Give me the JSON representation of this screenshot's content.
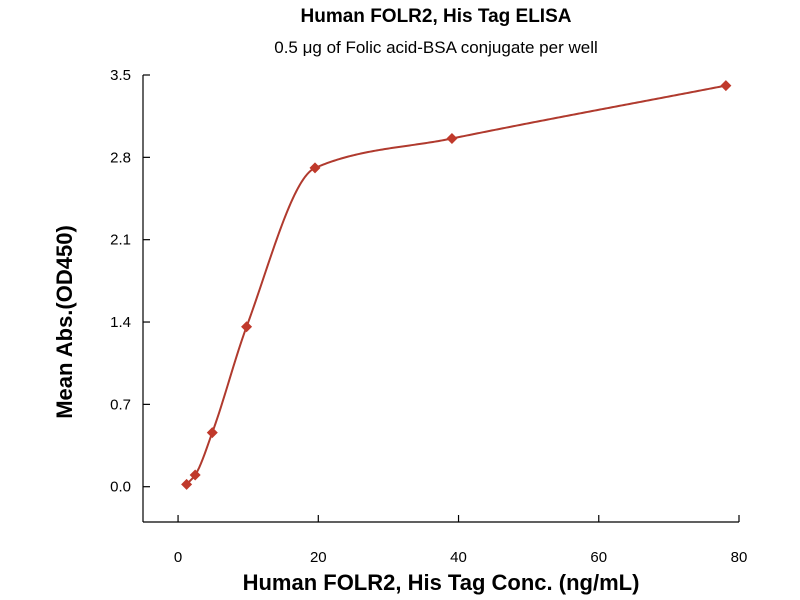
{
  "chart_data": {
    "type": "scatter",
    "title": "Human FOLR2, His Tag ELISA",
    "subtitle": "0.5 μg of Folic acid-BSA conjugate per well",
    "xlabel": "Human FOLR2, His Tag Conc. (ng/mL)",
    "ylabel": "Mean Abs.(OD450)",
    "xlim": [
      -5,
      80
    ],
    "ylim": [
      -0.3,
      3.5
    ],
    "xticks": [
      0,
      20,
      40,
      60,
      80
    ],
    "yticks": [
      0.0,
      0.7,
      1.4,
      2.1,
      2.8,
      3.5
    ],
    "ytick_labels": [
      "0.0",
      "0.7",
      "1.4",
      "2.1",
      "2.8",
      "3.5"
    ],
    "grid": false,
    "fit_curve": "four-parameter sigmoidal fit line",
    "series": [
      {
        "x": [
          1.22,
          2.44,
          4.88,
          9.77,
          19.53,
          39.06,
          78.13
        ],
        "y": [
          0.02,
          0.1,
          0.46,
          1.36,
          2.71,
          2.96,
          3.41
        ]
      }
    ],
    "colors": {
      "marker": "#c0392b",
      "curve": "#b03a2e"
    }
  }
}
